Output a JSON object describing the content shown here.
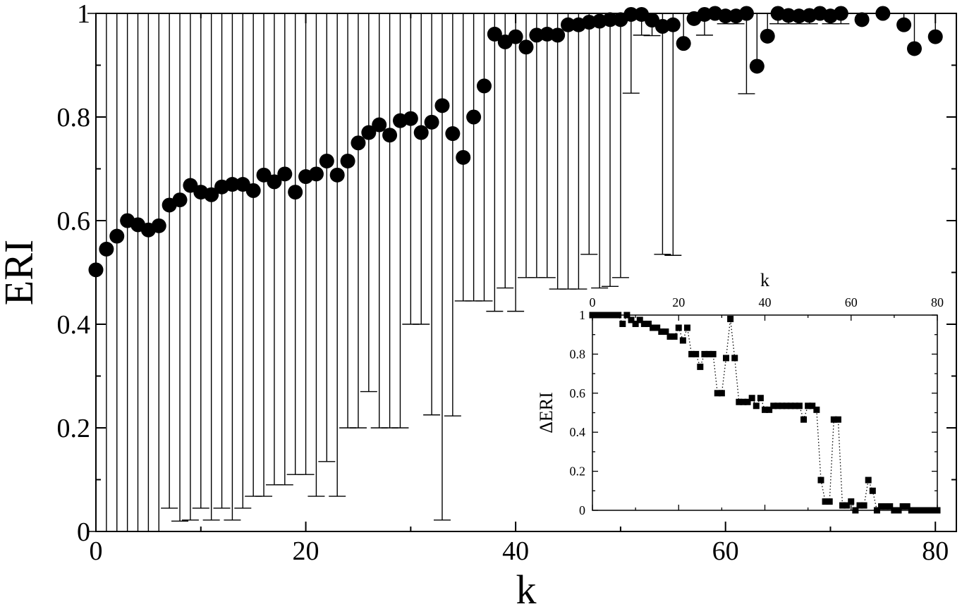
{
  "chart_data": [
    {
      "type": "scatter",
      "panel": "main",
      "xlabel": "k",
      "ylabel": "ERI",
      "xlim": [
        0,
        82
      ],
      "ylim": [
        0,
        1
      ],
      "xticks": [
        0,
        20,
        40,
        60,
        80
      ],
      "yticks": [
        0,
        0.2,
        0.4,
        0.6,
        0.8,
        1
      ],
      "x_tick_labels": [
        "0",
        "20",
        "40",
        "60",
        "80"
      ],
      "y_tick_labels": [
        "0",
        "0.2",
        "0.4",
        "0.6",
        "0.8",
        "1"
      ],
      "grid": false,
      "marker": "filled-circle",
      "color": "#000000",
      "x": [
        0,
        1,
        2,
        3,
        4,
        5,
        6,
        7,
        8,
        9,
        10,
        11,
        12,
        13,
        14,
        15,
        16,
        17,
        18,
        19,
        20,
        21,
        22,
        23,
        24,
        25,
        26,
        27,
        28,
        29,
        30,
        31,
        32,
        33,
        34,
        35,
        36,
        37,
        38,
        39,
        40,
        41,
        42,
        43,
        44,
        45,
        46,
        47,
        48,
        49,
        50,
        51,
        52,
        53,
        54,
        55,
        56,
        57,
        58,
        59,
        60,
        61,
        62,
        63,
        64,
        65,
        66,
        67,
        68,
        69,
        70,
        71,
        72,
        73,
        74,
        75,
        76,
        77,
        78,
        79,
        80
      ],
      "y": [
        0.505,
        0.545,
        0.57,
        0.6,
        0.592,
        0.582,
        0.59,
        0.63,
        0.64,
        0.668,
        0.655,
        0.65,
        0.665,
        0.67,
        0.67,
        0.658,
        0.688,
        0.675,
        0.69,
        0.655,
        0.685,
        0.69,
        0.715,
        0.688,
        0.715,
        0.75,
        0.77,
        0.785,
        0.765,
        0.793,
        0.797,
        0.77,
        0.79,
        0.822,
        0.768,
        0.722,
        0.8,
        0.86,
        0.96,
        0.945,
        0.955,
        0.935,
        0.958,
        0.96,
        0.958,
        0.978,
        0.978,
        0.983,
        0.985,
        0.988,
        0.988,
        0.998,
        0.998,
        0.987,
        0.975,
        0.978,
        0.942,
        0.99,
        0.998,
        1.0,
        0.995,
        0.995,
        1.0,
        0.898,
        0.956,
        1.0,
        0.996,
        0.995,
        0.996,
        1.0,
        0.995,
        1.0,
        null,
        0.988,
        null,
        1.0,
        null,
        0.978,
        0.932,
        null,
        0.955
      ],
      "error_lower": [
        0.505,
        0.545,
        0.57,
        0.6,
        0.592,
        0.582,
        0.59,
        0.585,
        0.62,
        0.646,
        0.61,
        0.628,
        0.62,
        0.648,
        0.625,
        0.59,
        0.62,
        0.585,
        0.6,
        0.545,
        0.575,
        0.622,
        0.58,
        0.62,
        0.515,
        0.55,
        0.5,
        0.585,
        0.565,
        0.593,
        0.397,
        0.37,
        0.565,
        0.8,
        0.545,
        0.277,
        0.355,
        0.415,
        0.535,
        0.475,
        0.53,
        0.445,
        0.468,
        0.47,
        0.49,
        0.51,
        0.51,
        0.448,
        0.515,
        0.515,
        0.498,
        0.152,
        0.04,
        0.03,
        0.44,
        0.445,
        0.0,
        0.0,
        0.04,
        0.0,
        0.015,
        0.015,
        0.155,
        0.0,
        0.0,
        0.02,
        0.016,
        0.015,
        0.016,
        0.0,
        0.015,
        0.02,
        null,
        0.0,
        null,
        0.0,
        null,
        0.0,
        0.0,
        null,
        0.0
      ],
      "error_upper": [
        0.495,
        0.455,
        0.43,
        0.4,
        0.408,
        0.418,
        0.41,
        0.37,
        0.36,
        0.332,
        0.345,
        0.35,
        0.335,
        0.33,
        0.33,
        0.342,
        0.312,
        0.325,
        0.31,
        0.345,
        0.315,
        0.31,
        0.285,
        0.312,
        0.285,
        0.25,
        0.23,
        0.215,
        0.235,
        0.207,
        0.203,
        0.23,
        0.21,
        0.178,
        0.232,
        0.278,
        0.2,
        0.14,
        0.04,
        0.055,
        0.045,
        0.065,
        0.042,
        0.04,
        0.042,
        0.022,
        0.022,
        0.017,
        0.015,
        0.012,
        0.012,
        0.002,
        0.002,
        0.013,
        0.025,
        0.022,
        0.058,
        0.01,
        0.002,
        0.0,
        0.005,
        0.005,
        0.0,
        0.102,
        0.044,
        0.0,
        0.004,
        0.005,
        0.004,
        0.0,
        0.005,
        0.0,
        null,
        0.012,
        null,
        0.0,
        null,
        0.022,
        0.068,
        null,
        0.045
      ]
    },
    {
      "type": "line",
      "panel": "inset",
      "xlabel": "k",
      "ylabel": "ΔERI",
      "xlim": [
        0,
        80
      ],
      "ylim": [
        0,
        1
      ],
      "xticks": [
        0,
        20,
        40,
        60,
        80
      ],
      "yticks": [
        0,
        0.2,
        0.4,
        0.6,
        0.8,
        1
      ],
      "x_tick_labels": [
        "0",
        "20",
        "40",
        "60",
        "80"
      ],
      "y_tick_labels": [
        "0",
        "0.2",
        "0.4",
        "0.6",
        "0.8",
        "1"
      ],
      "grid": false,
      "marker": "filled-square",
      "line_style": "dotted",
      "color": "#000000",
      "x": [
        0,
        1,
        2,
        3,
        4,
        5,
        6,
        7,
        8,
        9,
        10,
        11,
        12,
        13,
        14,
        15,
        16,
        17,
        18,
        19,
        20,
        21,
        22,
        23,
        24,
        25,
        26,
        27,
        28,
        29,
        30,
        31,
        32,
        33,
        34,
        35,
        36,
        37,
        38,
        39,
        40,
        41,
        42,
        43,
        44,
        45,
        46,
        47,
        48,
        49,
        50,
        51,
        52,
        53,
        54,
        55,
        56,
        57,
        58,
        59,
        60,
        61,
        62,
        63,
        64,
        65,
        66,
        67,
        68,
        69,
        70,
        71,
        72,
        73,
        74,
        75,
        76,
        77,
        78,
        79,
        80
      ],
      "y": [
        1.0,
        1.0,
        1.0,
        1.0,
        1.0,
        1.0,
        1.0,
        0.955,
        1.0,
        0.975,
        0.955,
        0.975,
        0.955,
        0.955,
        0.935,
        0.935,
        0.915,
        0.915,
        0.89,
        0.89,
        0.935,
        0.87,
        0.935,
        0.8,
        0.8,
        0.735,
        0.8,
        0.8,
        0.8,
        0.6,
        0.6,
        0.78,
        0.98,
        0.78,
        0.555,
        0.555,
        0.555,
        0.575,
        0.535,
        0.575,
        0.515,
        0.515,
        0.535,
        0.535,
        0.535,
        0.535,
        0.535,
        0.535,
        0.535,
        0.465,
        0.535,
        0.535,
        0.515,
        0.155,
        0.045,
        0.045,
        0.465,
        0.465,
        0.025,
        0.025,
        0.045,
        0.0,
        0.025,
        0.025,
        0.155,
        0.1,
        0.0,
        0.02,
        0.02,
        0.02,
        0.0,
        0.0,
        0.02,
        0.02,
        0.0,
        0.0,
        0.0,
        0.0,
        0.0,
        0.0,
        0.0
      ]
    }
  ]
}
